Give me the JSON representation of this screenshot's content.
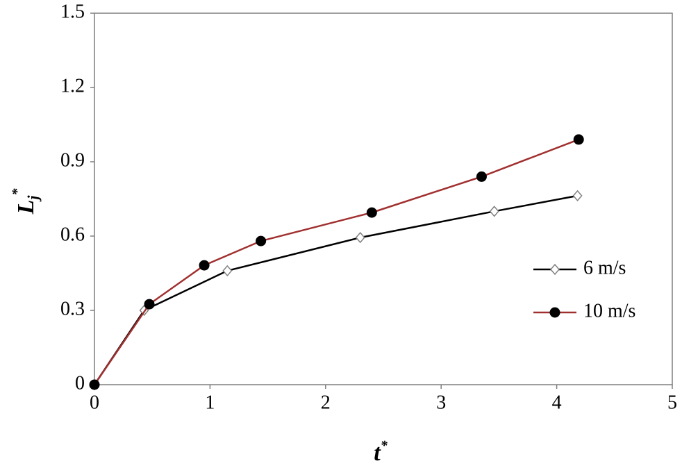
{
  "chart_data": {
    "type": "line",
    "x_label": {
      "base": "t",
      "sup": "*"
    },
    "y_label": {
      "base": "L",
      "sub": "j",
      "sup": "*"
    },
    "xlim": [
      0,
      5
    ],
    "xticks": [
      0,
      1,
      2,
      3,
      4,
      5
    ],
    "ylim": [
      0,
      1.5
    ],
    "yticks": [
      0,
      0.3,
      0.6,
      0.9,
      1.2,
      1.5
    ],
    "grid": false,
    "legend": "right",
    "series": [
      {
        "name": "6 m/s",
        "color": "#000000",
        "marker": "diamond",
        "marker_color": "#808080",
        "marker_fill": "#ffffff",
        "x": [
          0,
          0.43,
          1.15,
          2.3,
          3.46,
          4.18
        ],
        "values": [
          0,
          0.3,
          0.46,
          0.594,
          0.7,
          0.763
        ]
      },
      {
        "name": "10 m/s",
        "color": "#a0302f",
        "marker": "circle",
        "marker_color": "#000000",
        "marker_fill": "#000000",
        "x": [
          0,
          0.475,
          0.95,
          1.44,
          2.4,
          3.35,
          4.19
        ],
        "values": [
          0,
          0.325,
          0.482,
          0.58,
          0.695,
          0.84,
          0.99
        ]
      }
    ]
  }
}
